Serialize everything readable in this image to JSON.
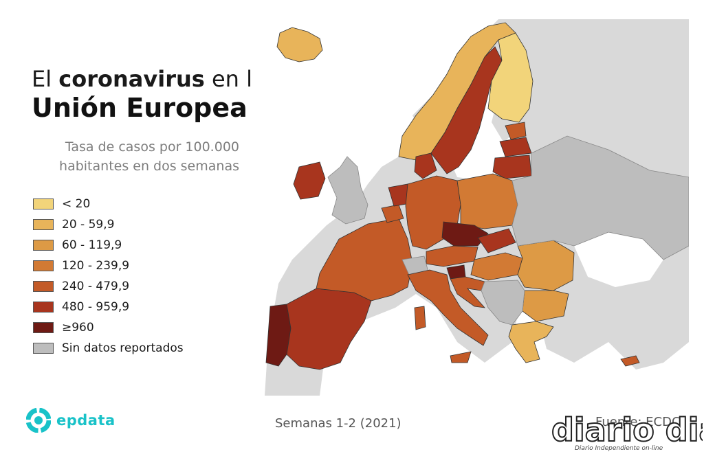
{
  "title": {
    "prefix": "El",
    "highlight": "coronavirus",
    "suffix": "en la",
    "line2": "Unión Europea"
  },
  "subtitle": {
    "line1": "Tasa de casos por 100.000",
    "line2": "habitantes en dos semanas"
  },
  "legend": [
    {
      "label": "< 20",
      "color": "#f2d47a"
    },
    {
      "label": "20 - 59,9",
      "color": "#e8b45a"
    },
    {
      "label": "60 - 119,9",
      "color": "#dd9a45"
    },
    {
      "label": "120 - 239,9",
      "color": "#d27a34"
    },
    {
      "label": "240 - 479,9",
      "color": "#c35a27"
    },
    {
      "label": "480 - 959,9",
      "color": "#a8351e"
    },
    {
      "label": "≥960",
      "color": "#6e1a14"
    },
    {
      "label": "Sin datos reportados",
      "color": "#bdbdbd"
    }
  ],
  "footer": {
    "brand": "epdata",
    "period": "Semanas 1-2 (2021)",
    "source": "Fuente: ECDC"
  },
  "watermark": {
    "name": "diario dia",
    "tagline": "Diario Independiente on-line"
  },
  "colors": {
    "brand": "#19c2c8",
    "sea": "#ffffff",
    "non_eu": "#d9d9d9"
  },
  "regions": [
    {
      "name": "iceland",
      "level": 1
    },
    {
      "name": "norway",
      "level": 1
    },
    {
      "name": "sweden",
      "level": 5
    },
    {
      "name": "finland",
      "level": 0
    },
    {
      "name": "estonia",
      "level": 4
    },
    {
      "name": "latvia",
      "level": 5
    },
    {
      "name": "lithuania",
      "level": 5
    },
    {
      "name": "ireland",
      "level": 5
    },
    {
      "name": "great-britain",
      "level": 7
    },
    {
      "name": "portugal",
      "level": 6
    },
    {
      "name": "spain",
      "level": 5
    },
    {
      "name": "france",
      "level": 4
    },
    {
      "name": "belgium",
      "level": 4
    },
    {
      "name": "netherlands",
      "level": 5
    },
    {
      "name": "denmark",
      "level": 5
    },
    {
      "name": "germany",
      "level": 4
    },
    {
      "name": "poland",
      "level": 3
    },
    {
      "name": "czechia",
      "level": 6
    },
    {
      "name": "slovakia",
      "level": 5
    },
    {
      "name": "austria",
      "level": 4
    },
    {
      "name": "switzerland",
      "level": 7
    },
    {
      "name": "italy",
      "level": 4
    },
    {
      "name": "slovenia",
      "level": 6
    },
    {
      "name": "croatia",
      "level": 4
    },
    {
      "name": "hungary",
      "level": 3
    },
    {
      "name": "romania",
      "level": 2
    },
    {
      "name": "bulgaria",
      "level": 2
    },
    {
      "name": "greece",
      "level": 1
    },
    {
      "name": "cyprus",
      "level": 4
    },
    {
      "name": "balkans",
      "level": 7
    },
    {
      "name": "eastern-europe",
      "level": 7
    }
  ]
}
